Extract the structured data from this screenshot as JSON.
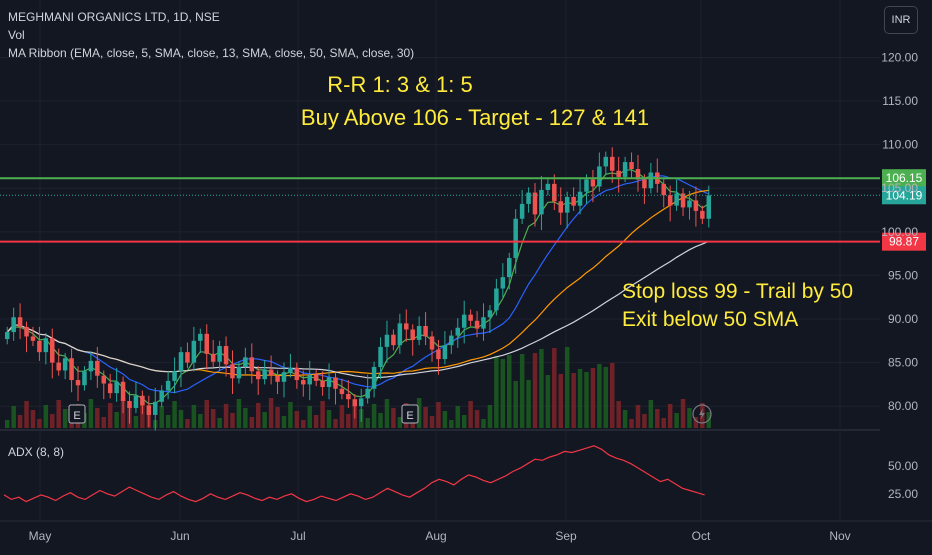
{
  "header": {
    "symbol_line": "MEGHMANI ORGANICS LTD, 1D, NSE",
    "vol_label": "Vol",
    "ma_ribbon_label": "MA Ribbon (EMA, close, 5, SMA, close, 13, SMA, close, 50, SMA, close, 30)",
    "currency_button": "INR"
  },
  "annotations": {
    "rr": "R-R 1: 3 & 1: 5",
    "buy": "Buy Above 106 - Target - 127 & 141",
    "stop": "Stop loss 99 - Trail by 50",
    "exit": "Exit below 50 SMA"
  },
  "colors": {
    "background": "#131722",
    "up": "#26a69a",
    "down": "#ef5350",
    "buy_line": "#4caf50",
    "stop_line": "#f23645",
    "annotation_text": "#ffeb3b",
    "ema5": "#4caf50",
    "sma13": "#2962ff",
    "sma50": "#d1d4dc",
    "sma30": "#ff9800",
    "adx": "#f23645"
  },
  "chart_data": [
    {
      "type": "candlestick",
      "symbol": "MEGHMANI ORGANICS LTD",
      "interval": "1D",
      "exchange": "NSE",
      "y_axis_ticks": [
        80,
        85,
        90,
        95,
        100,
        105,
        110,
        115,
        120
      ],
      "y_tick_labels": [
        "80.00",
        "85.00",
        "90.00",
        "95.00",
        "100.00",
        "105.00",
        "110.00",
        "115.00",
        "120.00"
      ],
      "ylim": [
        77.5,
        122
      ],
      "x_tick_labels": [
        "May",
        "Jun",
        "Jul",
        "Aug",
        "Sep",
        "Oct",
        "Nov"
      ],
      "horizontal_lines": [
        {
          "value": 106.15,
          "label": "106.15",
          "color": "#4caf50"
        },
        {
          "value": 98.87,
          "label": "98.87",
          "color": "#f23645"
        }
      ],
      "last_price": {
        "value": 104.19,
        "label": "104.19"
      },
      "earnings_markers": [
        {
          "month": "May",
          "label": "E"
        },
        {
          "month": "Jul",
          "label": "E"
        }
      ],
      "moving_averages": [
        "EMA 5",
        "SMA 13",
        "SMA 50",
        "SMA 30"
      ],
      "close_series": [
        88.5,
        90.2,
        89.1,
        88.0,
        87.5,
        86.2,
        87.8,
        85.0,
        84.1,
        85.5,
        83.0,
        82.4,
        84.0,
        85.2,
        83.5,
        82.6,
        81.5,
        82.8,
        80.6,
        79.8,
        81.2,
        80.1,
        79.0,
        80.5,
        81.8,
        82.9,
        84.0,
        86.2,
        85.0,
        87.5,
        88.3,
        86.0,
        85.1,
        86.9,
        84.8,
        83.2,
        84.5,
        85.6,
        84.0,
        83.1,
        84.2,
        83.5,
        82.8,
        83.9,
        84.4,
        83.0,
        82.5,
        83.6,
        82.9,
        82.2,
        83.3,
        82.0,
        81.4,
        80.8,
        80.0,
        80.9,
        82.0,
        84.5,
        86.8,
        88.2,
        87.0,
        89.5,
        88.8,
        87.6,
        89.2,
        88.0,
        86.5,
        85.4,
        87.0,
        88.1,
        89.0,
        90.5,
        89.8,
        88.9,
        90.2,
        91.0,
        93.5,
        94.8,
        97.0,
        101.5,
        103.2,
        104.5,
        102.0,
        104.8,
        105.5,
        103.5,
        102.2,
        104.0,
        103.0,
        104.6,
        106.0,
        105.2,
        107.5,
        108.6,
        107.0,
        106.3,
        108.0,
        107.2,
        106.0,
        105.0,
        106.8,
        105.5,
        104.2,
        103.0,
        104.4,
        102.8,
        103.6,
        102.4,
        101.5,
        104.19
      ],
      "volume_range_note": "volume bars (green up-day, red down-day) beneath price",
      "adx": {
        "label": "ADX (8, 8)",
        "y_axis_ticks": [
          25,
          50
        ],
        "y_tick_labels": [
          "25.00",
          "50.00"
        ],
        "values": [
          24,
          20,
          22,
          18,
          21,
          24,
          22,
          19,
          23,
          26,
          22,
          20,
          24,
          28,
          25,
          23,
          27,
          31,
          28,
          25,
          22,
          20,
          24,
          27,
          23,
          20,
          18,
          21,
          25,
          22,
          20,
          23,
          26,
          24,
          21,
          19,
          22,
          20,
          23,
          25,
          21,
          18,
          20,
          23,
          21,
          19,
          22,
          25,
          23,
          20,
          22,
          26,
          30,
          27,
          24,
          22,
          26,
          30,
          35,
          38,
          36,
          33,
          38,
          42,
          40,
          37,
          35,
          38,
          41,
          45,
          48,
          52,
          56,
          55,
          58,
          60,
          63,
          62,
          64,
          66,
          68,
          65,
          60,
          57,
          55,
          52,
          48,
          44,
          40,
          36,
          38,
          34,
          30,
          28,
          26,
          24
        ]
      }
    }
  ]
}
